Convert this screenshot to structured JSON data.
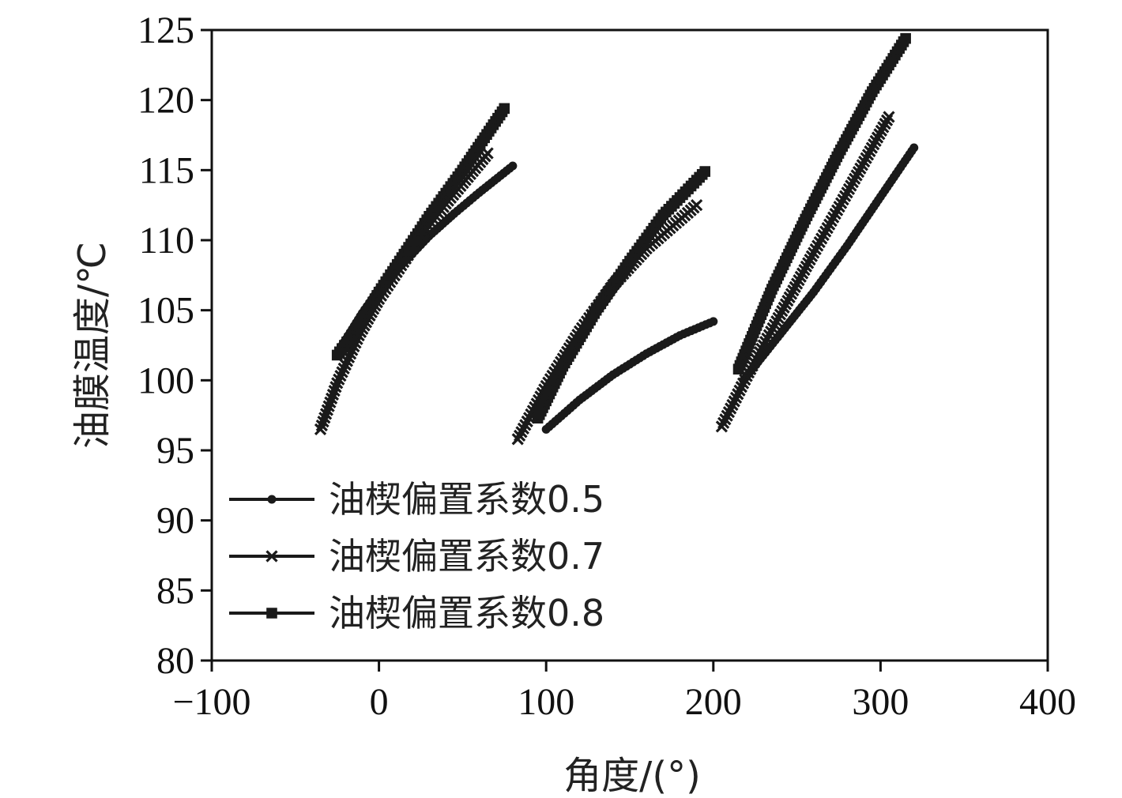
{
  "chart_data": {
    "type": "line",
    "title": "",
    "xlabel": "角度/(°)",
    "ylabel": "油膜温度/℃",
    "xlim": [
      -100,
      400
    ],
    "ylim": [
      80,
      125
    ],
    "xticks": [
      -100,
      0,
      100,
      200,
      300,
      400
    ],
    "yticks": [
      80,
      85,
      90,
      95,
      100,
      105,
      110,
      115,
      120,
      125
    ],
    "xtick_labels": [
      "−100",
      "0",
      "100",
      "200",
      "300",
      "400"
    ],
    "ytick_labels": [
      "80",
      "85",
      "90",
      "95",
      "100",
      "105",
      "110",
      "115",
      "120",
      "125"
    ],
    "grid": false,
    "legend_position": "lower-left",
    "series": [
      {
        "name": "油楔偏置系数0.5",
        "marker": "circle",
        "color": "#1a1a1a",
        "segments": [
          [
            [
              -22,
              102.5
            ],
            [
              -10,
              104.8
            ],
            [
              0,
              106.5
            ],
            [
              15,
              108.4
            ],
            [
              30,
              110.3
            ],
            [
              45,
              111.9
            ],
            [
              60,
              113.4
            ],
            [
              80,
              115.3
            ]
          ],
          [
            [
              100,
              96.5
            ],
            [
              120,
              98.6
            ],
            [
              140,
              100.4
            ],
            [
              160,
              101.9
            ],
            [
              180,
              103.2
            ],
            [
              200,
              104.2
            ]
          ],
          [
            [
              218,
              100
            ],
            [
              240,
              103.3
            ],
            [
              260,
              106.3
            ],
            [
              280,
              109.6
            ],
            [
              300,
              113.1
            ],
            [
              320,
              116.6
            ]
          ]
        ]
      },
      {
        "name": "油楔偏置系数0.7",
        "marker": "x",
        "color": "#1a1a1a",
        "segments": [
          [
            [
              -35,
              96.5
            ],
            [
              -25,
              99.8
            ],
            [
              -12,
              103.2
            ],
            [
              0,
              105.8
            ],
            [
              20,
              109.4
            ],
            [
              40,
              112.6
            ],
            [
              65,
              116.2
            ]
          ],
          [
            [
              83,
              95.8
            ],
            [
              100,
              99.6
            ],
            [
              120,
              103.5
            ],
            [
              140,
              106.8
            ],
            [
              160,
              109.4
            ],
            [
              190,
              112.5
            ]
          ],
          [
            [
              205,
              96.7
            ],
            [
              220,
              100.3
            ],
            [
              240,
              104.7
            ],
            [
              260,
              109.1
            ],
            [
              280,
              113.4
            ],
            [
              305,
              118.8
            ]
          ]
        ]
      },
      {
        "name": "油楔偏置系数0.8",
        "marker": "square-x",
        "color": "#1a1a1a",
        "segments": [
          [
            [
              -25,
              101.8
            ],
            [
              -12,
              103.9
            ],
            [
              0,
              106.3
            ],
            [
              15,
              109.0
            ],
            [
              30,
              111.7
            ],
            [
              50,
              115.0
            ],
            [
              75,
              119.4
            ]
          ],
          [
            [
              95,
              97.3
            ],
            [
              110,
              101.0
            ],
            [
              130,
              105.0
            ],
            [
              150,
              108.5
            ],
            [
              170,
              111.8
            ],
            [
              195,
              114.9
            ]
          ],
          [
            [
              215,
              100.8
            ],
            [
              235,
              106.5
            ],
            [
              255,
              111.5
            ],
            [
              275,
              116.2
            ],
            [
              295,
              120.6
            ],
            [
              315,
              124.4
            ]
          ]
        ]
      }
    ]
  }
}
